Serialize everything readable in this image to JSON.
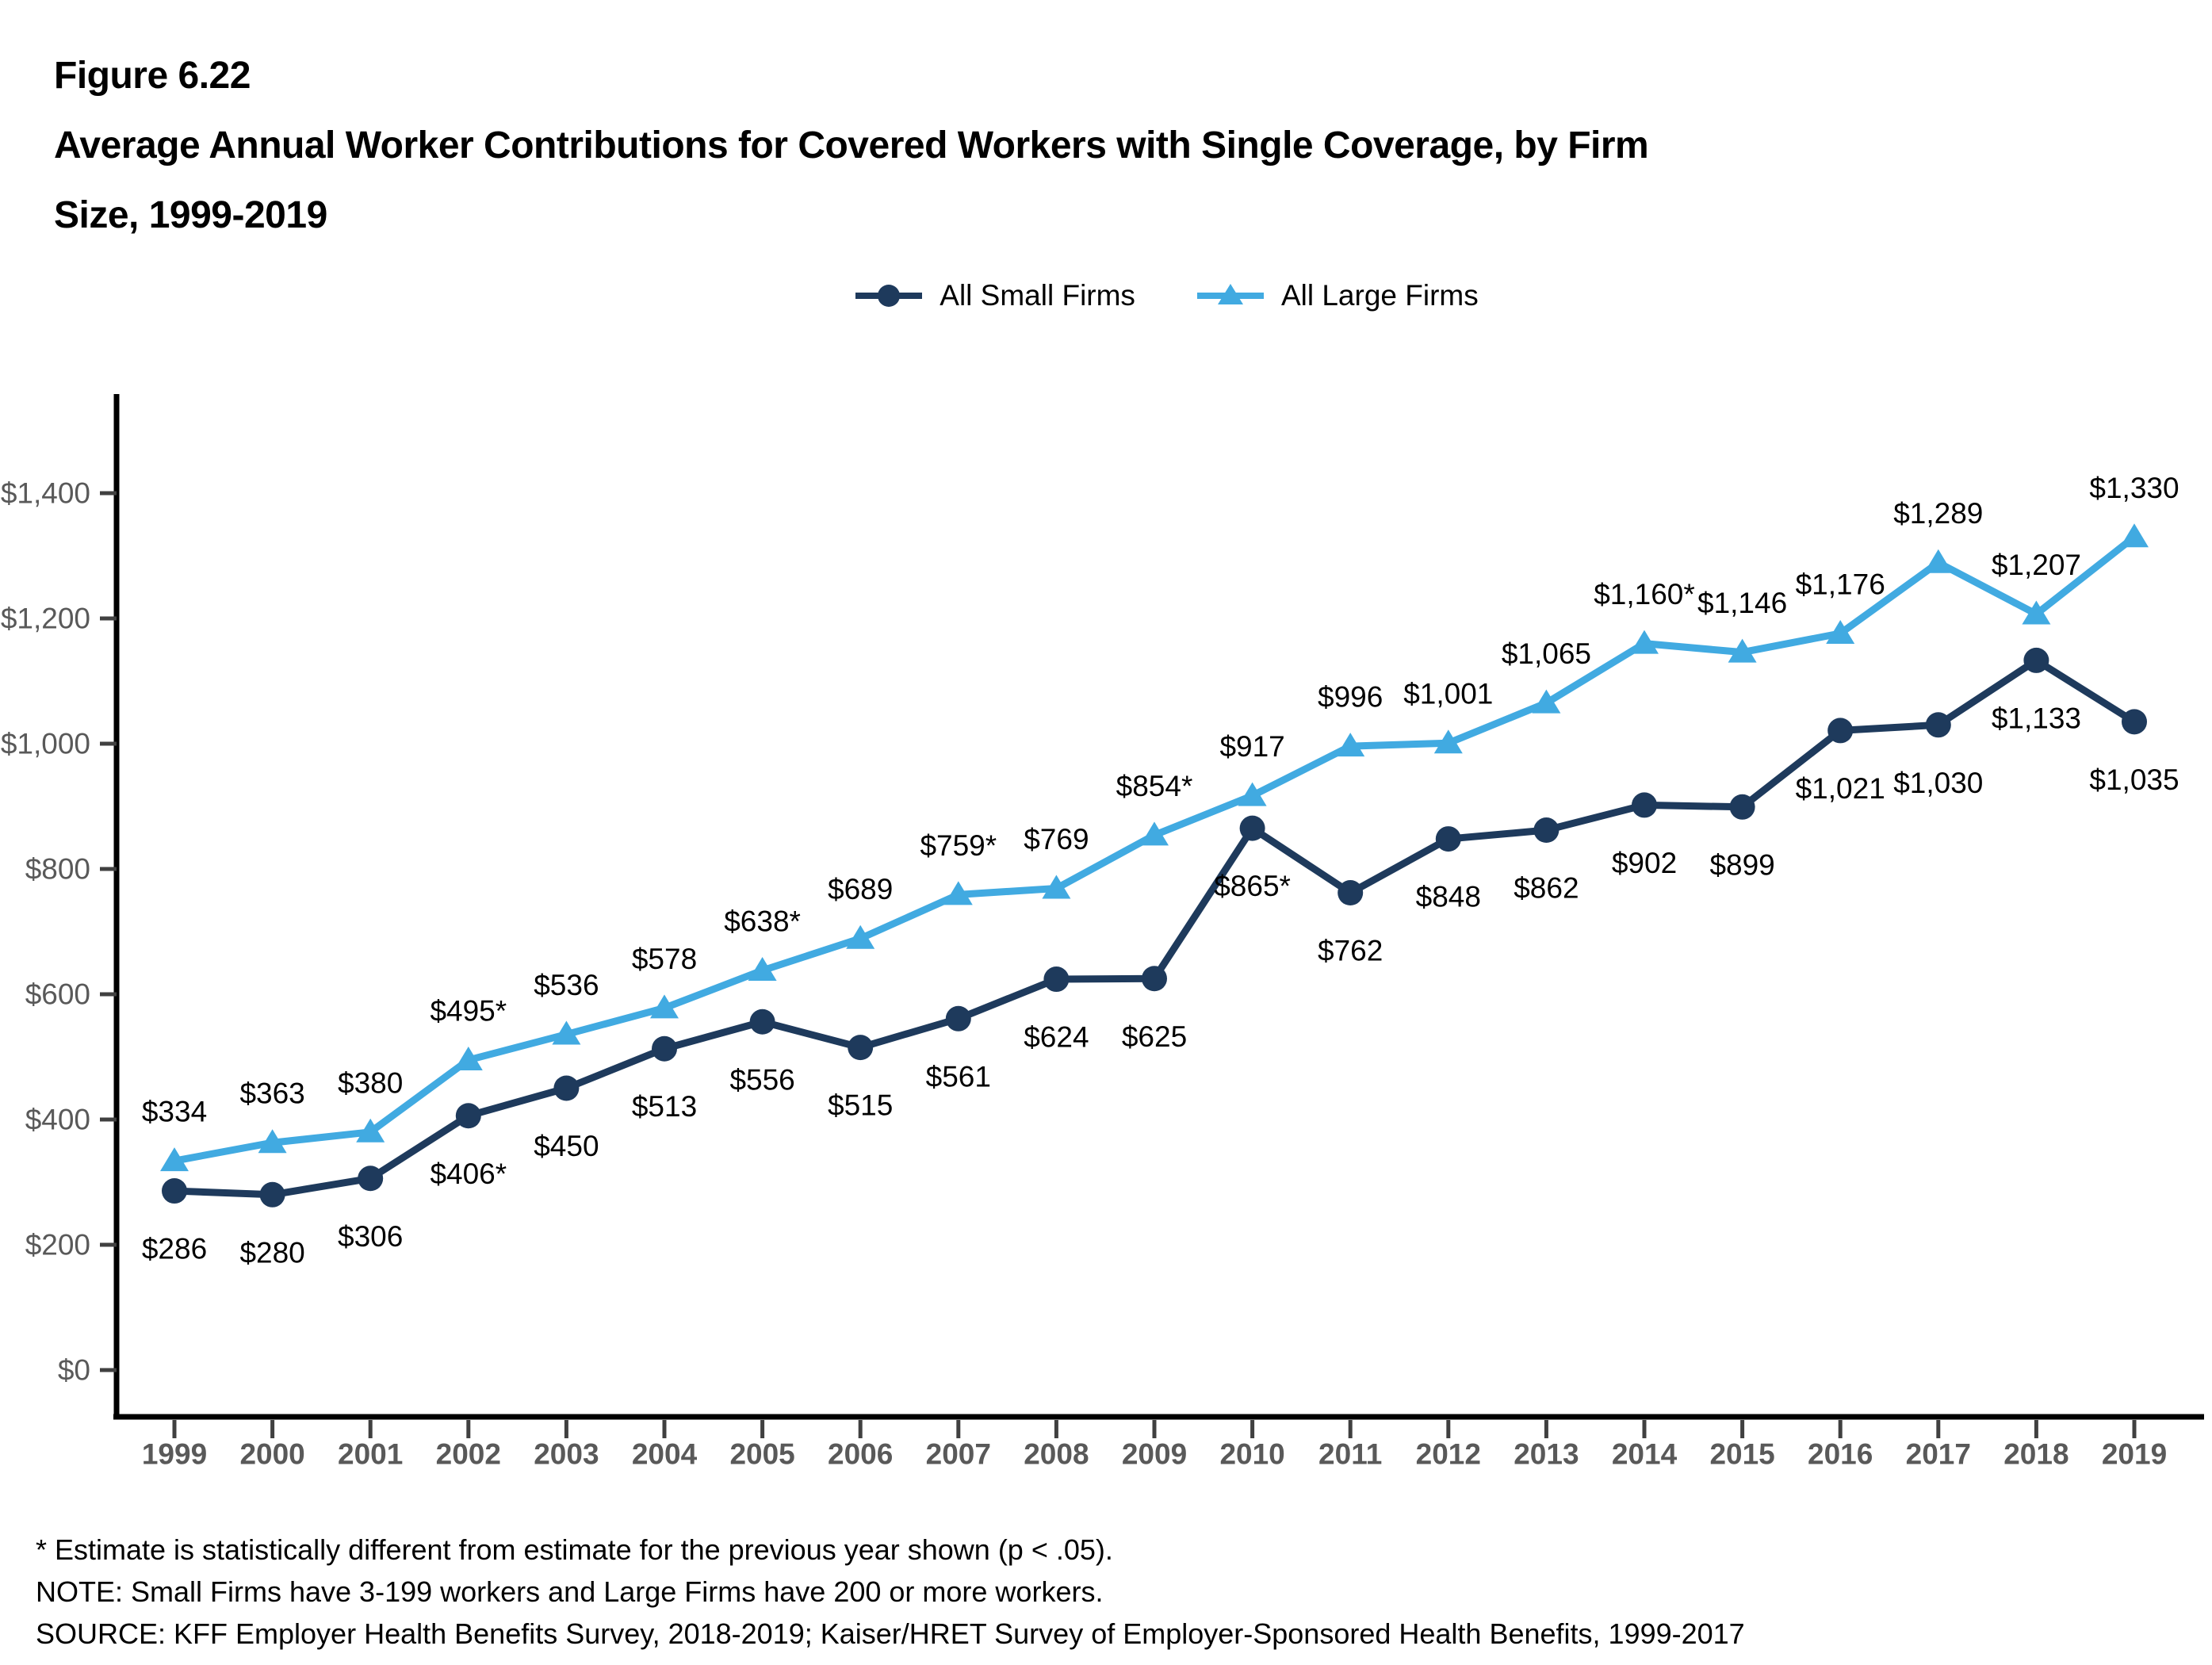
{
  "title": {
    "figure_label": "Figure 6.22",
    "line1": "Average Annual Worker Contributions for Covered Workers with Single Coverage, by Firm",
    "line2": "Size, 1999-2019"
  },
  "legend": [
    {
      "label": "All Small Firms",
      "color": "#1E3A5C",
      "marker": "circle"
    },
    {
      "label": "All Large Firms",
      "color": "#41AAE1",
      "marker": "triangle"
    }
  ],
  "chart_data": {
    "type": "line",
    "title": "Average Annual Worker Contributions for Covered Workers with Single Coverage, by Firm Size, 1999-2019",
    "categories": [
      "1999",
      "2000",
      "2001",
      "2002",
      "2003",
      "2004",
      "2005",
      "2006",
      "2007",
      "2008",
      "2009",
      "2010",
      "2011",
      "2012",
      "2013",
      "2014",
      "2015",
      "2016",
      "2017",
      "2018",
      "2019"
    ],
    "series": [
      {
        "name": "All Small Firms",
        "marker": "circle",
        "color": "#1E3A5C",
        "values": [
          286,
          280,
          306,
          406,
          450,
          513,
          556,
          515,
          561,
          624,
          625,
          865,
          762,
          848,
          862,
          902,
          899,
          1021,
          1030,
          1133,
          1035
        ],
        "labels": [
          "$286",
          "$280",
          "$306",
          "$406*",
          "$450",
          "$513",
          "$556",
          "$515",
          "$561",
          "$624",
          "$625",
          "$865*",
          "$762",
          "$848",
          "$862",
          "$902",
          "$899",
          "$1,021",
          "$1,030",
          "$1,133",
          "$1,035"
        ]
      },
      {
        "name": "All Large Firms",
        "marker": "triangle",
        "color": "#41AAE1",
        "values": [
          334,
          363,
          380,
          495,
          536,
          578,
          638,
          689,
          759,
          769,
          854,
          917,
          996,
          1001,
          1065,
          1160,
          1146,
          1176,
          1289,
          1207,
          1330
        ],
        "labels": [
          "$334",
          "$363",
          "$380",
          "$495*",
          "$536",
          "$578",
          "$638*",
          "$689",
          "$759*",
          "$769",
          "$854*",
          "$917",
          "$996",
          "$1,001",
          "$1,065",
          "$1,160*",
          "$1,146",
          "$1,176",
          "$1,289",
          "$1,207",
          "$1,330"
        ]
      }
    ],
    "y_axis": {
      "min": 0,
      "max": 1400,
      "step": 200,
      "tick_labels": [
        "$0",
        "$200",
        "$400",
        "$600",
        "$800",
        "$1,000",
        "$1,200",
        "$1,400"
      ]
    },
    "ylim": [
      0,
      1400
    ],
    "grid": false,
    "legend_position": "top"
  },
  "footnotes": [
    "* Estimate is statistically different from estimate for the previous year shown (p < .05).",
    "NOTE: Small Firms have 3-199 workers and Large Firms have 200 or more workers.",
    "SOURCE: KFF Employer Health Benefits Survey, 2018-2019; Kaiser/HRET Survey of Employer-Sponsored Health Benefits, 1999-2017"
  ]
}
